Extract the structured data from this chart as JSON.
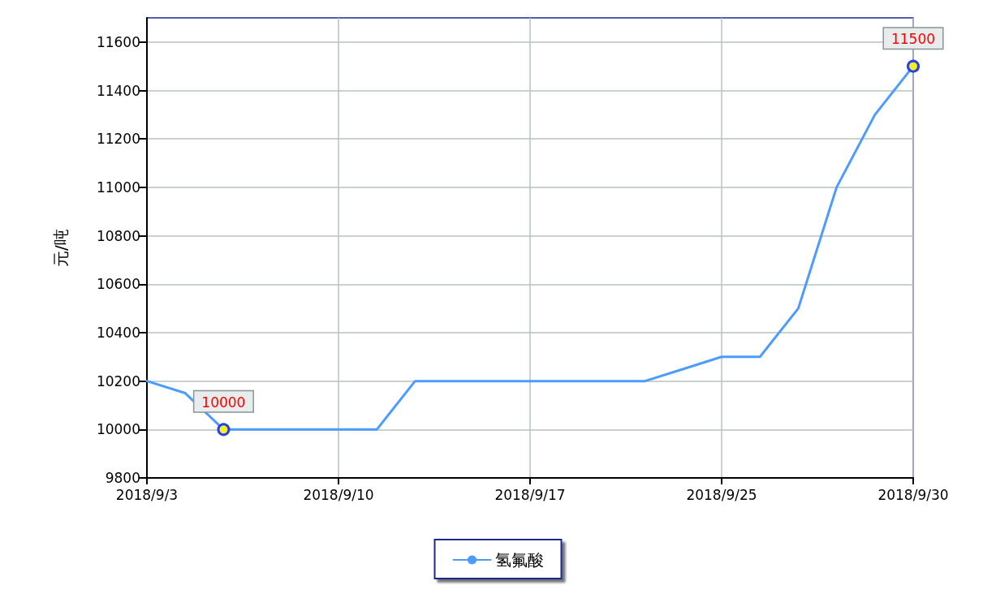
{
  "chart_data": {
    "type": "line",
    "ylabel": "元/吨",
    "categories": [
      "2018/9/3",
      null,
      null,
      null,
      null,
      "2018/9/10",
      null,
      null,
      null,
      null,
      "2018/9/17",
      null,
      null,
      null,
      null,
      "2018/9/25",
      null,
      null,
      null,
      null,
      "2018/9/30"
    ],
    "series": [
      {
        "name": "氢氟酸",
        "color": "#4c9cff",
        "values": [
          10200,
          10150,
          10000,
          10000,
          10000,
          10000,
          10000,
          10200,
          10200,
          10200,
          10200,
          10200,
          10200,
          10200,
          10250,
          10300,
          10300,
          10500,
          11000,
          11300,
          11500
        ],
        "value_labels": [
          null,
          null,
          "10000",
          null,
          null,
          null,
          null,
          null,
          null,
          null,
          null,
          null,
          null,
          null,
          null,
          null,
          null,
          null,
          null,
          null,
          "11500"
        ]
      }
    ],
    "ylim": [
      9800,
      11700
    ],
    "yticks": [
      9800,
      10000,
      10200,
      10400,
      10600,
      10800,
      11000,
      11200,
      11400,
      11600
    ],
    "grid": true,
    "legend": "bottom"
  }
}
